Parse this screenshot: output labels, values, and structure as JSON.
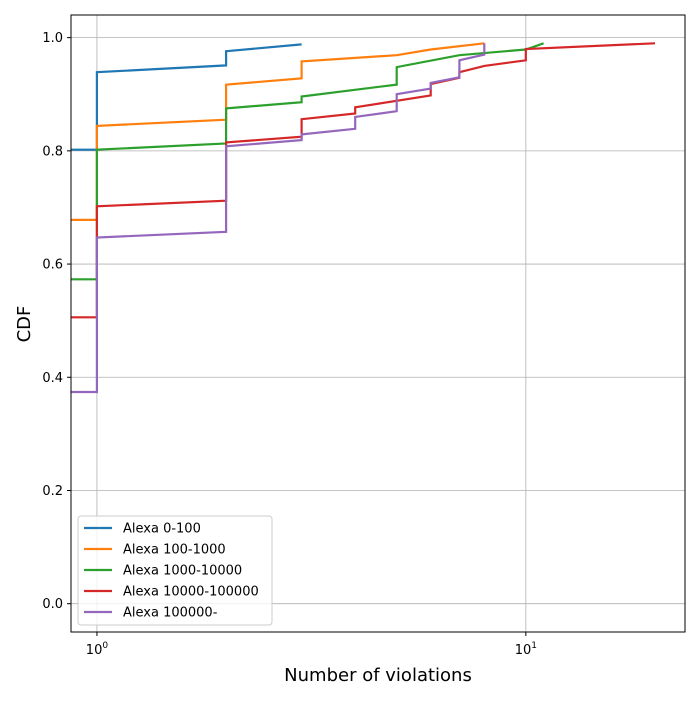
{
  "chart_data": {
    "type": "line",
    "title": "",
    "xlabel": "Number of violations",
    "ylabel": "CDF",
    "xscale": "log",
    "xlim": [
      0.87,
      23.5
    ],
    "ylim": [
      -0.05,
      1.04
    ],
    "grid": true,
    "legend_position": "lower-left",
    "x_ticks": [
      {
        "value": 1,
        "base": "10",
        "exp": "0"
      },
      {
        "value": 10,
        "base": "10",
        "exp": "1"
      }
    ],
    "y_ticks": [
      {
        "value": 0.0,
        "label": "0.0"
      },
      {
        "value": 0.2,
        "label": "0.2"
      },
      {
        "value": 0.4,
        "label": "0.4"
      },
      {
        "value": 0.6,
        "label": "0.6"
      },
      {
        "value": 0.8,
        "label": "0.8"
      },
      {
        "value": 1.0,
        "label": "1.0"
      }
    ],
    "series": [
      {
        "name": "Alexa 0-100",
        "color": "#1f77b4",
        "points": [
          [
            0.87,
            0.802
          ],
          [
            1,
            0.802
          ],
          [
            1,
            0.939
          ],
          [
            2,
            0.951
          ],
          [
            2,
            0.976
          ],
          [
            3,
            0.988
          ]
        ]
      },
      {
        "name": "Alexa 100-1000",
        "color": "#ff7f0e",
        "points": [
          [
            0.87,
            0.678
          ],
          [
            1,
            0.678
          ],
          [
            1,
            0.844
          ],
          [
            2,
            0.855
          ],
          [
            2,
            0.917
          ],
          [
            3,
            0.928
          ],
          [
            3,
            0.958
          ],
          [
            5,
            0.969
          ],
          [
            6,
            0.979
          ],
          [
            8,
            0.99
          ]
        ]
      },
      {
        "name": "Alexa 1000-10000",
        "color": "#2ca02c",
        "points": [
          [
            0.87,
            0.573
          ],
          [
            1,
            0.573
          ],
          [
            1,
            0.802
          ],
          [
            2,
            0.813
          ],
          [
            2,
            0.875
          ],
          [
            3,
            0.886
          ],
          [
            3,
            0.896
          ],
          [
            5,
            0.917
          ],
          [
            5,
            0.948
          ],
          [
            7,
            0.969
          ],
          [
            10,
            0.979
          ],
          [
            11,
            0.99
          ]
        ]
      },
      {
        "name": "Alexa 10000-100000",
        "color": "#d62728",
        "points": [
          [
            0.87,
            0.506
          ],
          [
            1,
            0.506
          ],
          [
            1,
            0.702
          ],
          [
            2,
            0.712
          ],
          [
            2,
            0.815
          ],
          [
            3,
            0.825
          ],
          [
            3,
            0.856
          ],
          [
            4,
            0.866
          ],
          [
            4,
            0.877
          ],
          [
            6,
            0.898
          ],
          [
            6,
            0.918
          ],
          [
            7,
            0.929
          ],
          [
            7,
            0.939
          ],
          [
            8,
            0.95
          ],
          [
            10,
            0.96
          ],
          [
            10,
            0.98
          ],
          [
            20,
            0.99
          ]
        ]
      },
      {
        "name": "Alexa 100000-",
        "color": "#9467bd",
        "points": [
          [
            0.87,
            0.374
          ],
          [
            1,
            0.374
          ],
          [
            1,
            0.647
          ],
          [
            2,
            0.657
          ],
          [
            2,
            0.808
          ],
          [
            3,
            0.819
          ],
          [
            3,
            0.829
          ],
          [
            4,
            0.839
          ],
          [
            4,
            0.86
          ],
          [
            5,
            0.87
          ],
          [
            5,
            0.9
          ],
          [
            6,
            0.91
          ],
          [
            6,
            0.92
          ],
          [
            7,
            0.93
          ],
          [
            7,
            0.96
          ],
          [
            8,
            0.97
          ],
          [
            8,
            0.99
          ]
        ]
      }
    ]
  }
}
